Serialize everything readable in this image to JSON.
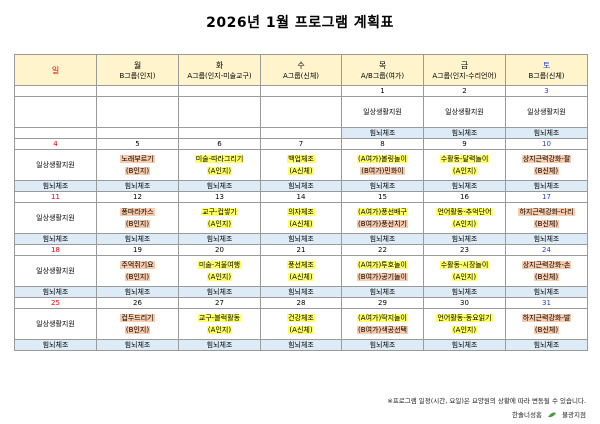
{
  "title": "2026년 1월 프로그램 계획표",
  "header": [
    {
      "day": "일",
      "sub": ""
    },
    {
      "day": "월",
      "sub": "B그룹(인지)"
    },
    {
      "day": "화",
      "sub": "A그룹(인지-미술교구)"
    },
    {
      "day": "수",
      "sub": "A그룹(신체)"
    },
    {
      "day": "목",
      "sub": "A/B그룹(여가)"
    },
    {
      "day": "금",
      "sub": "A그룹(인지-수리언어)"
    },
    {
      "day": "토",
      "sub": "B그룹(신체)"
    }
  ],
  "weeks": [
    {
      "dates": [
        "",
        "",
        "",
        "",
        "1",
        "2",
        "3"
      ],
      "cells": [
        [],
        [],
        [],
        [],
        [
          {
            "t": "일상생활지원",
            "h": ""
          }
        ],
        [
          {
            "t": "일상생활지원",
            "h": ""
          }
        ],
        [
          {
            "t": "일상생활지원",
            "h": ""
          }
        ]
      ],
      "foot": [
        "",
        "",
        "",
        "",
        "힘뇌체조",
        "힘뇌체조",
        "힘뇌체조"
      ]
    },
    {
      "dates": [
        "4",
        "5",
        "6",
        "7",
        "8",
        "9",
        "10"
      ],
      "cells": [
        [
          {
            "t": "일상생활지원",
            "h": ""
          }
        ],
        [
          {
            "t": "노래부르기",
            "h": "pk"
          },
          {
            "t": "(B인지)",
            "h": "pk"
          }
        ],
        [
          {
            "t": "미술-따라그리기",
            "h": "yl"
          },
          {
            "t": "(A인지)",
            "h": "yl"
          }
        ],
        [
          {
            "t": "백업체조",
            "h": "yl"
          },
          {
            "t": "(A신체)",
            "h": "yl"
          }
        ],
        [
          {
            "t": "(A여가)볼링놀이",
            "h": "yl"
          },
          {
            "t": "(B여가)민화이",
            "h": "pk"
          }
        ],
        [
          {
            "t": "수활동-달력놀이",
            "h": "yl"
          },
          {
            "t": "(A인지)",
            "h": "yl"
          }
        ],
        [
          {
            "t": "상지근력강화-팔",
            "h": "pk"
          },
          {
            "t": "(B신체)",
            "h": "pk"
          }
        ]
      ],
      "foot": [
        "힘뇌체조",
        "힘뇌체조",
        "힘뇌체조",
        "힘뇌체조",
        "힘뇌체조",
        "힘뇌체조",
        "힘뇌체조"
      ]
    },
    {
      "dates": [
        "11",
        "12",
        "13",
        "14",
        "15",
        "16",
        "17"
      ],
      "cells": [
        [
          {
            "t": "일상생활지원",
            "h": ""
          }
        ],
        [
          {
            "t": "퐁마라카스",
            "h": "pk"
          },
          {
            "t": "(B인지)",
            "h": "pk"
          }
        ],
        [
          {
            "t": "교구-컵쌓기",
            "h": "yl"
          },
          {
            "t": "(A인지)",
            "h": "yl"
          }
        ],
        [
          {
            "t": "의자체조",
            "h": "yl"
          },
          {
            "t": "(A신체)",
            "h": "yl"
          }
        ],
        [
          {
            "t": "(A여가)풍선배구",
            "h": "yl"
          },
          {
            "t": "(B여가)풍선치기",
            "h": "pk"
          }
        ],
        [
          {
            "t": "언어활동-추억단어",
            "h": "yl"
          },
          {
            "t": "(A인지)",
            "h": "yl"
          }
        ],
        [
          {
            "t": "하지근력강화-다리",
            "h": "pk"
          },
          {
            "t": "(B신체)",
            "h": "pk"
          }
        ]
      ],
      "foot": [
        "힘뇌체조",
        "힘뇌체조",
        "힘뇌체조",
        "힘뇌체조",
        "힘뇌체조",
        "힘뇌체조",
        "힘뇌체조"
      ]
    },
    {
      "dates": [
        "18",
        "19",
        "20",
        "21",
        "22",
        "23",
        "24"
      ],
      "cells": [
        [
          {
            "t": "일상생활지원",
            "h": ""
          }
        ],
        [
          {
            "t": "주먹쥐기요",
            "h": "pk"
          },
          {
            "t": "(B인지)",
            "h": "pk"
          }
        ],
        [
          {
            "t": "미술-겨울여행",
            "h": "yl"
          },
          {
            "t": "(A인지)",
            "h": "yl"
          }
        ],
        [
          {
            "t": "풍선체조",
            "h": "yl"
          },
          {
            "t": "(A신체)",
            "h": "yl"
          }
        ],
        [
          {
            "t": "(A여가)투호놀이",
            "h": "yl"
          },
          {
            "t": "(B여가)공기놀이",
            "h": "pk"
          }
        ],
        [
          {
            "t": "수활동-시장놀이",
            "h": "yl"
          },
          {
            "t": "(A인지)",
            "h": "yl"
          }
        ],
        [
          {
            "t": "상지근력강화-손",
            "h": "pk"
          },
          {
            "t": "(B신체)",
            "h": "pk"
          }
        ]
      ],
      "foot": [
        "힘뇌체조",
        "힘뇌체조",
        "힘뇌체조",
        "힘뇌체조",
        "힘뇌체조",
        "힘뇌체조",
        "힘뇌체조"
      ]
    },
    {
      "dates": [
        "25",
        "26",
        "27",
        "28",
        "29",
        "30",
        "31"
      ],
      "cells": [
        [
          {
            "t": "일상생활지원",
            "h": ""
          }
        ],
        [
          {
            "t": "컵두드리기",
            "h": "pk"
          },
          {
            "t": "(B인지)",
            "h": "pk"
          }
        ],
        [
          {
            "t": "교구-블럭활동",
            "h": "yl"
          },
          {
            "t": "(A인지)",
            "h": "yl"
          }
        ],
        [
          {
            "t": "건강체조",
            "h": "yl"
          },
          {
            "t": "(A신체)",
            "h": "yl"
          }
        ],
        [
          {
            "t": "(A여가)딱지놀이",
            "h": "yl"
          },
          {
            "t": "(B여가)색공선택",
            "h": "pk"
          }
        ],
        [
          {
            "t": "언어활동-동요읽기",
            "h": "yl"
          },
          {
            "t": "(A인지)",
            "h": "yl"
          }
        ],
        [
          {
            "t": "하지근력강화-발",
            "h": "pk"
          },
          {
            "t": "(B신체)",
            "h": "pk"
          }
        ]
      ],
      "foot": [
        "힘뇌체조",
        "힘뇌체조",
        "힘뇌체조",
        "힘뇌체조",
        "힘뇌체조",
        "힘뇌체조",
        "힘뇌체조"
      ]
    }
  ],
  "note": "※프로그램 일정(시간, 요일)은 요양원의 상황에 따라 변동될 수 있습니다.",
  "brand_left": "한솔너성홈",
  "brand_right": "불광지점",
  "colors": {
    "sunday": "#e00000",
    "saturday": "#1f3fd8",
    "header_bg": "#fff4cc",
    "foot_bg": "#ddebf7",
    "highlight_pink": "#f8cbad",
    "highlight_yellow": "#ffff66"
  }
}
